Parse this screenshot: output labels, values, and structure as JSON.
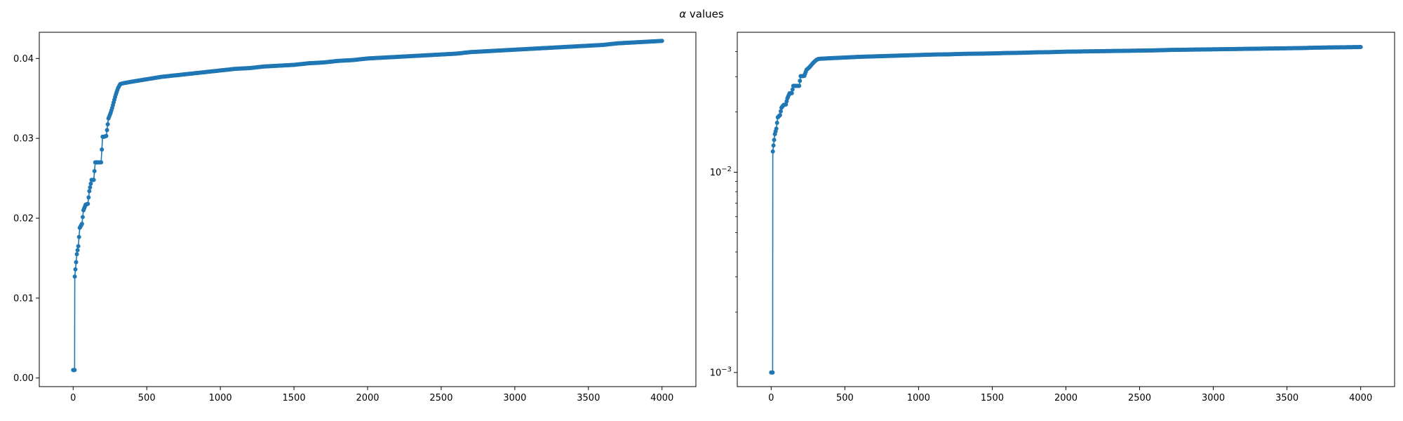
{
  "figure": {
    "title_symbol": "α",
    "title_rest": " values"
  },
  "chart_data": [
    {
      "type": "line",
      "title": "",
      "xlabel": "",
      "ylabel": "",
      "xlim": [
        -230,
        4230
      ],
      "ylim": [
        -0.00108,
        0.04328
      ],
      "yscale": "linear",
      "grid": false,
      "marker": "circle",
      "color": "#1f77b4",
      "xticks": [
        0,
        500,
        1000,
        1500,
        2000,
        2500,
        3000,
        3500,
        4000
      ],
      "xtick_labels": [
        "0",
        "500",
        "1000",
        "1500",
        "2000",
        "2500",
        "3000",
        "3500",
        "4000"
      ],
      "yticks": [
        0.0,
        0.01,
        0.02,
        0.03,
        0.04
      ],
      "ytick_labels": [
        "0.00",
        "0.01",
        "0.02",
        "0.03",
        "0.04"
      ],
      "series": [
        {
          "x": [
            0,
            10,
            11,
            20,
            25,
            35,
            45,
            60,
            70,
            85,
            100,
            110,
            125,
            140,
            150,
            165,
            190,
            200,
            210,
            225,
            240,
            255,
            265,
            275,
            290,
            305,
            320,
            340,
            400,
            500,
            600,
            700,
            800,
            900,
            1000,
            1100,
            1200,
            1300,
            1400,
            1500,
            1600,
            1700,
            1800,
            1900,
            2000,
            2100,
            2200,
            2300,
            2400,
            2500,
            2600,
            2700,
            2800,
            2900,
            3000,
            3100,
            3200,
            3300,
            3400,
            3500,
            3600,
            3700,
            3800,
            3900,
            4000
          ],
          "y": [
            0.001,
            0.001,
            0.0127,
            0.0145,
            0.0155,
            0.0165,
            0.0188,
            0.0193,
            0.021,
            0.0217,
            0.0218,
            0.0234,
            0.0248,
            0.0248,
            0.027,
            0.027,
            0.027,
            0.0302,
            0.0302,
            0.0303,
            0.0325,
            0.0332,
            0.0338,
            0.0345,
            0.0355,
            0.0363,
            0.0368,
            0.0369,
            0.0371,
            0.0374,
            0.0377,
            0.0379,
            0.0381,
            0.0383,
            0.0385,
            0.0387,
            0.0388,
            0.039,
            0.0391,
            0.0392,
            0.0394,
            0.0395,
            0.0397,
            0.0398,
            0.04,
            0.0401,
            0.0402,
            0.0403,
            0.0404,
            0.0405,
            0.0406,
            0.0408,
            0.0409,
            0.041,
            0.0411,
            0.0412,
            0.0413,
            0.0414,
            0.0415,
            0.0416,
            0.0417,
            0.0419,
            0.042,
            0.0421,
            0.0422
          ]
        }
      ]
    },
    {
      "type": "line",
      "title": "",
      "xlabel": "",
      "ylabel": "",
      "xlim": [
        -230,
        4230
      ],
      "ylim": [
        0.00085,
        0.05
      ],
      "yscale": "log",
      "grid": false,
      "marker": "circle",
      "color": "#1f77b4",
      "xticks": [
        0,
        500,
        1000,
        1500,
        2000,
        2500,
        3000,
        3500,
        4000
      ],
      "xtick_labels": [
        "0",
        "500",
        "1000",
        "1500",
        "2000",
        "2500",
        "3000",
        "3500",
        "4000"
      ],
      "yticks": [
        0.001,
        0.01
      ],
      "ytick_base": "10",
      "ytick_exponents": [
        "−3",
        "−2"
      ],
      "yminor_ticks": [
        0.002,
        0.003,
        0.004,
        0.005,
        0.006,
        0.007,
        0.008,
        0.009,
        0.02,
        0.03,
        0.04
      ],
      "series": [
        {
          "x": [
            0,
            10,
            11,
            20,
            25,
            35,
            45,
            60,
            70,
            85,
            100,
            110,
            125,
            140,
            150,
            165,
            190,
            200,
            210,
            225,
            240,
            255,
            265,
            275,
            290,
            305,
            320,
            340,
            400,
            500,
            600,
            700,
            800,
            900,
            1000,
            1100,
            1200,
            1300,
            1400,
            1500,
            1600,
            1700,
            1800,
            1900,
            2000,
            2100,
            2200,
            2300,
            2400,
            2500,
            2600,
            2700,
            2800,
            2900,
            3000,
            3100,
            3200,
            3300,
            3400,
            3500,
            3600,
            3700,
            3800,
            3900,
            4000
          ],
          "y": [
            0.001,
            0.001,
            0.0127,
            0.0145,
            0.0155,
            0.0165,
            0.0188,
            0.0193,
            0.021,
            0.0217,
            0.0218,
            0.0234,
            0.0248,
            0.0248,
            0.027,
            0.027,
            0.027,
            0.0302,
            0.0302,
            0.0303,
            0.0325,
            0.0332,
            0.0338,
            0.0345,
            0.0355,
            0.0363,
            0.0368,
            0.0369,
            0.0371,
            0.0374,
            0.0377,
            0.0379,
            0.0381,
            0.0383,
            0.0385,
            0.0387,
            0.0388,
            0.039,
            0.0391,
            0.0392,
            0.0394,
            0.0395,
            0.0397,
            0.0398,
            0.04,
            0.0401,
            0.0402,
            0.0403,
            0.0404,
            0.0405,
            0.0406,
            0.0408,
            0.0409,
            0.041,
            0.0411,
            0.0412,
            0.0413,
            0.0414,
            0.0415,
            0.0416,
            0.0417,
            0.0419,
            0.042,
            0.0421,
            0.0422
          ]
        }
      ]
    }
  ]
}
